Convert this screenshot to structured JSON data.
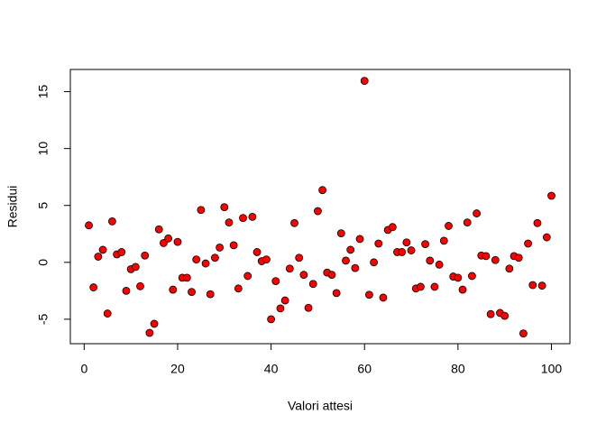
{
  "chart_data": {
    "type": "scatter",
    "x_label": "Valori attesi",
    "y_label": "Residui",
    "x": [
      1,
      2,
      3,
      4,
      5,
      6,
      7,
      8,
      9,
      10,
      11,
      12,
      13,
      14,
      15,
      16,
      17,
      18,
      19,
      20,
      21,
      22,
      23,
      24,
      25,
      26,
      27,
      28,
      29,
      30,
      31,
      32,
      33,
      34,
      35,
      36,
      37,
      38,
      39,
      40,
      41,
      42,
      43,
      44,
      45,
      46,
      47,
      48,
      49,
      50,
      51,
      52,
      53,
      54,
      55,
      56,
      57,
      58,
      59,
      60,
      61,
      62,
      63,
      64,
      65,
      66,
      67,
      68,
      69,
      70,
      71,
      72,
      73,
      74,
      75,
      76,
      77,
      78,
      79,
      80,
      81,
      82,
      83,
      84,
      85,
      86,
      87,
      88,
      89,
      90,
      91,
      92,
      93,
      94,
      95,
      96,
      97,
      98,
      99,
      100
    ],
    "values": [
      3.25,
      -2.2,
      0.5,
      1.1,
      -4.5,
      3.6,
      0.7,
      0.9,
      -2.5,
      -0.6,
      -0.4,
      -2.1,
      0.6,
      -6.2,
      -5.4,
      2.9,
      1.7,
      2.1,
      -2.4,
      1.8,
      -1.35,
      -1.35,
      -2.6,
      0.25,
      4.6,
      -0.1,
      -2.8,
      0.4,
      1.3,
      4.85,
      3.5,
      1.5,
      -2.3,
      3.9,
      -1.2,
      4.0,
      0.9,
      0.1,
      0.25,
      -5.0,
      -1.65,
      -4.05,
      -3.35,
      -0.55,
      3.45,
      0.4,
      -1.1,
      -4.0,
      -1.9,
      4.5,
      6.35,
      -0.9,
      -1.1,
      -2.7,
      2.55,
      0.15,
      1.1,
      -0.5,
      2.05,
      15.95,
      -2.85,
      0,
      1.65,
      -3.1,
      2.85,
      3.1,
      0.9,
      0.9,
      1.75,
      1.05,
      -2.3,
      -2.15,
      1.6,
      0.15,
      -2.15,
      -0.2,
      1.9,
      3.2,
      -1.25,
      -1.35,
      -2.4,
      3.5,
      -1.2,
      4.3,
      0.6,
      0.55,
      -4.55,
      0.2,
      -4.45,
      -4.7,
      -0.55,
      0.55,
      0.4,
      -6.25,
      1.65,
      -2.0,
      3.45,
      -2.05,
      2.2,
      5.85
    ],
    "color": "#ff0000",
    "xlim": [
      -2.96,
      103.96
    ],
    "xticks": [
      0,
      20,
      40,
      60,
      80,
      100
    ],
    "ylim": [
      -7.15,
      16.95
    ],
    "yticks": [
      -5,
      0,
      5,
      10,
      15
    ]
  }
}
